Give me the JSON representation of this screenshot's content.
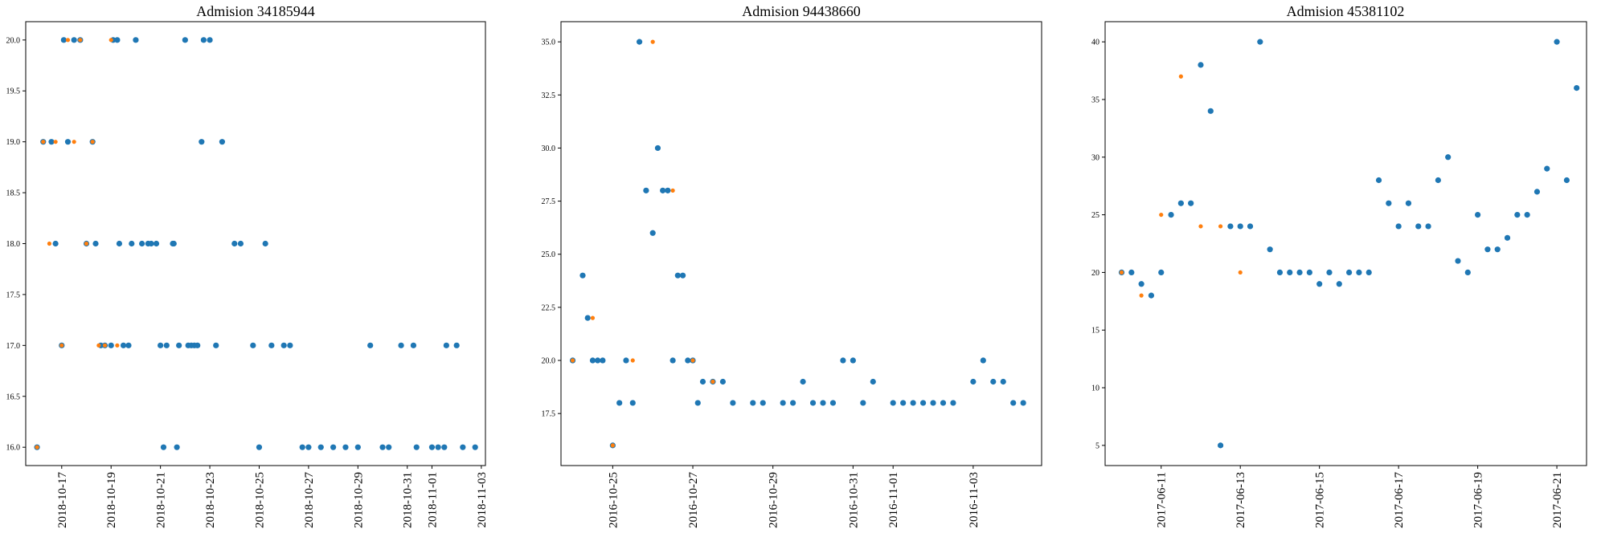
{
  "chart_data": [
    {
      "type": "scatter",
      "title": "Admision 34185944",
      "xlim": [
        "2018-10-15T13:00",
        "2018-11-03T04:00"
      ],
      "ylim": [
        15.82,
        20.18
      ],
      "yticks": [
        16.0,
        16.5,
        17.0,
        17.5,
        18.0,
        18.5,
        19.0,
        19.5,
        20.0
      ],
      "ytick_labels": [
        "16.0",
        "16.5",
        "17.0",
        "17.5",
        "18.0",
        "18.5",
        "19.0",
        "19.5",
        "20.0"
      ],
      "xticks": [
        "2018-10-17",
        "2018-10-19",
        "2018-10-21",
        "2018-10-23",
        "2018-10-25",
        "2018-10-27",
        "2018-10-29",
        "2018-10-31",
        "2018-11-01",
        "2018-11-03"
      ],
      "series": [
        {
          "color": "#1f77b4",
          "x": [
            "2018-10-16T00:00",
            "2018-10-16T06:00",
            "2018-10-16T14:00",
            "2018-10-16T18:00",
            "2018-10-17T00:00",
            "2018-10-17T02:00",
            "2018-10-17T06:00",
            "2018-10-17T12:00",
            "2018-10-17T18:00",
            "2018-10-18T00:00",
            "2018-10-18T06:00",
            "2018-10-18T09:00",
            "2018-10-18T14:00",
            "2018-10-18T18:00",
            "2018-10-19T00:00",
            "2018-10-19T02:00",
            "2018-10-19T06:00",
            "2018-10-19T08:00",
            "2018-10-19T12:00",
            "2018-10-19T17:00",
            "2018-10-19T20:00",
            "2018-10-20T00:00",
            "2018-10-20T06:00",
            "2018-10-20T12:00",
            "2018-10-20T15:00",
            "2018-10-20T20:00",
            "2018-10-21T00:00",
            "2018-10-21T03:00",
            "2018-10-21T06:00",
            "2018-10-21T12:00",
            "2018-10-21T13:00",
            "2018-10-21T16:00",
            "2018-10-21T18:00",
            "2018-10-22T00:00",
            "2018-10-22T03:00",
            "2018-10-22T06:00",
            "2018-10-22T09:00",
            "2018-10-22T12:00",
            "2018-10-22T16:00",
            "2018-10-22T18:00",
            "2018-10-23T00:00",
            "2018-10-23T06:00",
            "2018-10-23T12:00",
            "2018-10-24T00:00",
            "2018-10-24T06:00",
            "2018-10-24T18:00",
            "2018-10-25T00:00",
            "2018-10-25T06:00",
            "2018-10-25T12:00",
            "2018-10-26T00:00",
            "2018-10-26T06:00",
            "2018-10-26T18:00",
            "2018-10-27T00:00",
            "2018-10-27T12:00",
            "2018-10-28T00:00",
            "2018-10-28T12:00",
            "2018-10-29T00:00",
            "2018-10-29T12:00",
            "2018-10-30T00:00",
            "2018-10-30T06:00",
            "2018-10-30T18:00",
            "2018-10-31T06:00",
            "2018-10-31T09:00",
            "2018-11-01T00:00",
            "2018-11-01T06:00",
            "2018-11-01T12:00",
            "2018-11-01T14:00",
            "2018-11-02T00:00",
            "2018-11-02T06:00",
            "2018-11-02T18:00"
          ],
          "y": [
            16,
            19,
            19,
            18,
            17,
            20,
            19,
            20,
            20,
            18,
            19,
            18,
            17,
            17,
            17,
            20,
            20,
            18,
            17,
            17,
            18,
            20,
            18,
            18,
            18,
            18,
            17,
            16,
            17,
            18,
            18,
            16,
            17,
            20,
            17,
            17,
            17,
            17,
            19,
            20,
            20,
            17,
            19,
            18,
            18,
            17,
            16,
            18,
            17,
            17,
            17,
            16,
            16,
            16,
            16,
            16,
            16,
            17,
            16,
            16,
            17,
            17,
            16,
            16,
            16,
            16,
            17,
            17,
            16,
            16
          ]
        },
        {
          "color": "#ff7f0e",
          "x": [
            "2018-10-16T00:00",
            "2018-10-16T06:00",
            "2018-10-16T12:00",
            "2018-10-16T18:00",
            "2018-10-17T00:00",
            "2018-10-17T06:00",
            "2018-10-17T12:00",
            "2018-10-17T18:00",
            "2018-10-18T00:00",
            "2018-10-18T06:00",
            "2018-10-18T12:00",
            "2018-10-18T18:00",
            "2018-10-19T00:00",
            "2018-10-19T06:00"
          ],
          "y": [
            16,
            19,
            18,
            19,
            17,
            20,
            19,
            20,
            18,
            19,
            17,
            17,
            20,
            17
          ]
        }
      ]
    },
    {
      "type": "scatter",
      "title": "Admision 94438660",
      "xlim": [
        "2016-10-23T17:00",
        "2016-11-04T17:00"
      ],
      "ylim": [
        15.05,
        35.95
      ],
      "yticks": [
        17.5,
        20.0,
        22.5,
        25.0,
        27.5,
        30.0,
        32.5,
        35.0
      ],
      "ytick_labels": [
        "17.5",
        "20.0",
        "22.5",
        "25.0",
        "27.5",
        "30.0",
        "32.5",
        "35.0"
      ],
      "xticks": [
        "2016-10-25",
        "2016-10-27",
        "2016-10-29",
        "2016-10-31",
        "2016-11-01",
        "2016-11-03"
      ],
      "series": [
        {
          "color": "#1f77b4",
          "x": [
            "2016-10-24T00:00",
            "2016-10-24T06:00",
            "2016-10-24T09:00",
            "2016-10-24T12:00",
            "2016-10-24T15:00",
            "2016-10-24T18:00",
            "2016-10-25T00:00",
            "2016-10-25T04:00",
            "2016-10-25T08:00",
            "2016-10-25T12:00",
            "2016-10-25T16:00",
            "2016-10-25T20:00",
            "2016-10-26T00:00",
            "2016-10-26T03:00",
            "2016-10-26T06:00",
            "2016-10-26T09:00",
            "2016-10-26T12:00",
            "2016-10-26T15:00",
            "2016-10-26T18:00",
            "2016-10-26T21:00",
            "2016-10-27T00:00",
            "2016-10-27T03:00",
            "2016-10-27T06:00",
            "2016-10-27T12:00",
            "2016-10-27T18:00",
            "2016-10-28T00:00",
            "2016-10-28T12:00",
            "2016-10-28T18:00",
            "2016-10-29T06:00",
            "2016-10-29T12:00",
            "2016-10-29T18:00",
            "2016-10-30T00:00",
            "2016-10-30T06:00",
            "2016-10-30T12:00",
            "2016-10-30T18:00",
            "2016-10-31T00:00",
            "2016-10-31T06:00",
            "2016-10-31T12:00",
            "2016-11-01T00:00",
            "2016-11-01T06:00",
            "2016-11-01T12:00",
            "2016-11-01T18:00",
            "2016-11-02T00:00",
            "2016-11-02T06:00",
            "2016-11-02T12:00",
            "2016-11-03T00:00",
            "2016-11-03T06:00",
            "2016-11-03T12:00",
            "2016-11-03T18:00",
            "2016-11-04T00:00",
            "2016-11-04T06:00"
          ],
          "y": [
            20,
            24,
            22,
            20,
            20,
            20,
            16,
            18,
            20,
            18,
            35,
            28,
            26,
            30,
            28,
            28,
            20,
            24,
            24,
            20,
            20,
            18,
            19,
            19,
            19,
            18,
            18,
            18,
            18,
            18,
            19,
            18,
            18,
            18,
            20,
            20,
            18,
            19,
            18,
            18,
            18,
            18,
            18,
            18,
            18,
            19,
            20,
            19,
            19,
            18,
            18
          ]
        },
        {
          "color": "#ff7f0e",
          "x": [
            "2016-10-24T00:00",
            "2016-10-24T12:00",
            "2016-10-25T00:00",
            "2016-10-25T12:00",
            "2016-10-26T00:00",
            "2016-10-26T12:00",
            "2016-10-27T00:00",
            "2016-10-27T12:00"
          ],
          "y": [
            20,
            22,
            16,
            20,
            35,
            28,
            20,
            19
          ]
        }
      ]
    },
    {
      "type": "scatter",
      "title": "Admision 45381102",
      "xlim": [
        "2017-06-09T14:00",
        "2017-06-21T18:00"
      ],
      "ylim": [
        3.25,
        41.75
      ],
      "yticks": [
        5,
        10,
        15,
        20,
        25,
        30,
        35,
        40
      ],
      "ytick_labels": [
        "5",
        "10",
        "15",
        "20",
        "25",
        "30",
        "35",
        "40"
      ],
      "xticks": [
        "2017-06-11",
        "2017-06-13",
        "2017-06-15",
        "2017-06-17",
        "2017-06-19",
        "2017-06-21"
      ],
      "series": [
        {
          "color": "#1f77b4",
          "x": [
            "2017-06-10T00:00",
            "2017-06-10T06:00",
            "2017-06-10T12:00",
            "2017-06-10T18:00",
            "2017-06-11T00:00",
            "2017-06-11T06:00",
            "2017-06-11T12:00",
            "2017-06-11T18:00",
            "2017-06-12T00:00",
            "2017-06-12T06:00",
            "2017-06-12T12:00",
            "2017-06-12T18:00",
            "2017-06-13T00:00",
            "2017-06-13T06:00",
            "2017-06-13T12:00",
            "2017-06-13T18:00",
            "2017-06-14T00:00",
            "2017-06-14T06:00",
            "2017-06-14T12:00",
            "2017-06-14T18:00",
            "2017-06-15T00:00",
            "2017-06-15T06:00",
            "2017-06-15T12:00",
            "2017-06-15T18:00",
            "2017-06-16T00:00",
            "2017-06-16T06:00",
            "2017-06-16T12:00",
            "2017-06-16T18:00",
            "2017-06-17T00:00",
            "2017-06-17T06:00",
            "2017-06-17T12:00",
            "2017-06-17T18:00",
            "2017-06-18T00:00",
            "2017-06-18T06:00",
            "2017-06-18T12:00",
            "2017-06-18T18:00",
            "2017-06-19T00:00",
            "2017-06-19T06:00",
            "2017-06-19T12:00",
            "2017-06-19T18:00",
            "2017-06-20T00:00",
            "2017-06-20T06:00",
            "2017-06-20T12:00",
            "2017-06-20T18:00",
            "2017-06-21T00:00",
            "2017-06-21T06:00",
            "2017-06-21T12:00"
          ],
          "y": [
            20,
            20,
            19,
            18,
            20,
            25,
            26,
            26,
            38,
            34,
            5,
            24,
            24,
            24,
            40,
            22,
            20,
            20,
            20,
            20,
            19,
            20,
            19,
            20,
            20,
            20,
            28,
            26,
            24,
            26,
            24,
            24,
            28,
            30,
            21,
            20,
            25,
            22,
            22,
            23,
            25,
            25,
            27,
            29,
            40,
            28,
            36
          ]
        },
        {
          "color": "#ff7f0e",
          "x": [
            "2017-06-10T00:00",
            "2017-06-10T12:00",
            "2017-06-11T00:00",
            "2017-06-11T12:00",
            "2017-06-12T00:00",
            "2017-06-12T12:00",
            "2017-06-13T00:00"
          ],
          "y": [
            20,
            18,
            25,
            37,
            24,
            24,
            20
          ]
        }
      ]
    }
  ]
}
